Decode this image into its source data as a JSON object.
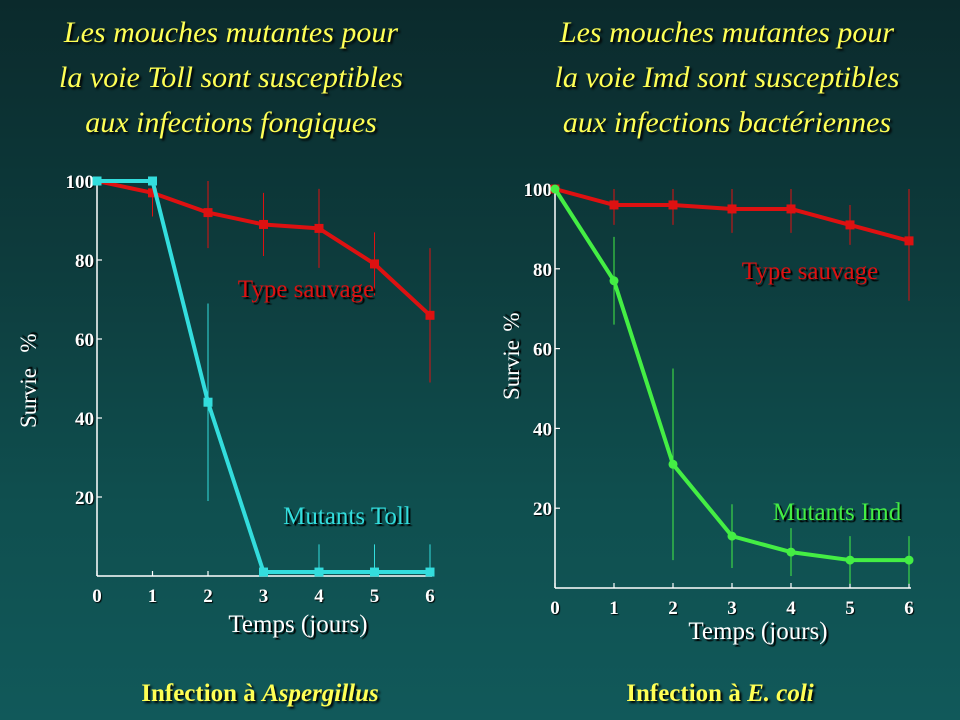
{
  "panels": [
    {
      "title_lines": [
        "Les mouches mutantes pour",
        "la voie Toll sont susceptibles",
        "aux infections fongiques"
      ],
      "caption_prefix": "Infection à ",
      "caption_organism": "Aspergillus"
    },
    {
      "title_lines": [
        "Les mouches mutantes pour",
        "la voie Imd sont susceptibles",
        "aux infections bactériennes"
      ],
      "caption_prefix": "Infection à ",
      "caption_organism": "E. coli"
    }
  ],
  "chart_data": [
    {
      "type": "line",
      "title": "",
      "xlabel": "Temps (jours)",
      "ylabel_parts": [
        "Survie",
        "%"
      ],
      "x": [
        0,
        1,
        2,
        3,
        4,
        5,
        6
      ],
      "xlim": [
        0,
        6
      ],
      "ylim": [
        0,
        100
      ],
      "x_ticks": [
        "0",
        "1",
        "2",
        "3",
        "4",
        "5",
        "6"
      ],
      "y_ticks": [
        "20",
        "40",
        "60",
        "80",
        "100"
      ],
      "grid": false,
      "series": [
        {
          "name": "Type sauvage",
          "color": "#dd1111",
          "values": [
            100,
            97,
            92,
            89,
            88,
            79,
            66
          ],
          "error": [
            0,
            6,
            9,
            8,
            10,
            8,
            17
          ]
        },
        {
          "name": "Mutants Toll",
          "color": "#33dddd",
          "values": [
            100,
            100,
            44,
            1,
            1,
            1,
            1
          ],
          "error": [
            0,
            0,
            25,
            0,
            7,
            7,
            7
          ]
        }
      ]
    },
    {
      "type": "line",
      "title": "",
      "xlabel": "Temps (jours)",
      "ylabel_parts": [
        "Survie",
        "%"
      ],
      "x": [
        0,
        1,
        2,
        3,
        4,
        5,
        6
      ],
      "xlim": [
        0,
        6
      ],
      "ylim": [
        0,
        100
      ],
      "x_ticks": [
        "0",
        "1",
        "2",
        "3",
        "4",
        "5",
        "6"
      ],
      "y_ticks": [
        "20",
        "40",
        "60",
        "80",
        "100"
      ],
      "grid": false,
      "series": [
        {
          "name": "Type sauvage",
          "color": "#dd1111",
          "values": [
            100,
            96,
            96,
            95,
            95,
            91,
            87
          ],
          "error": [
            0,
            5,
            5,
            6,
            6,
            5,
            15
          ]
        },
        {
          "name": "Mutants Imd",
          "color": "#44ee44",
          "values": [
            100,
            77,
            31,
            13,
            9,
            7,
            7
          ],
          "error": [
            0,
            11,
            24,
            8,
            6,
            6,
            6
          ]
        }
      ]
    }
  ]
}
